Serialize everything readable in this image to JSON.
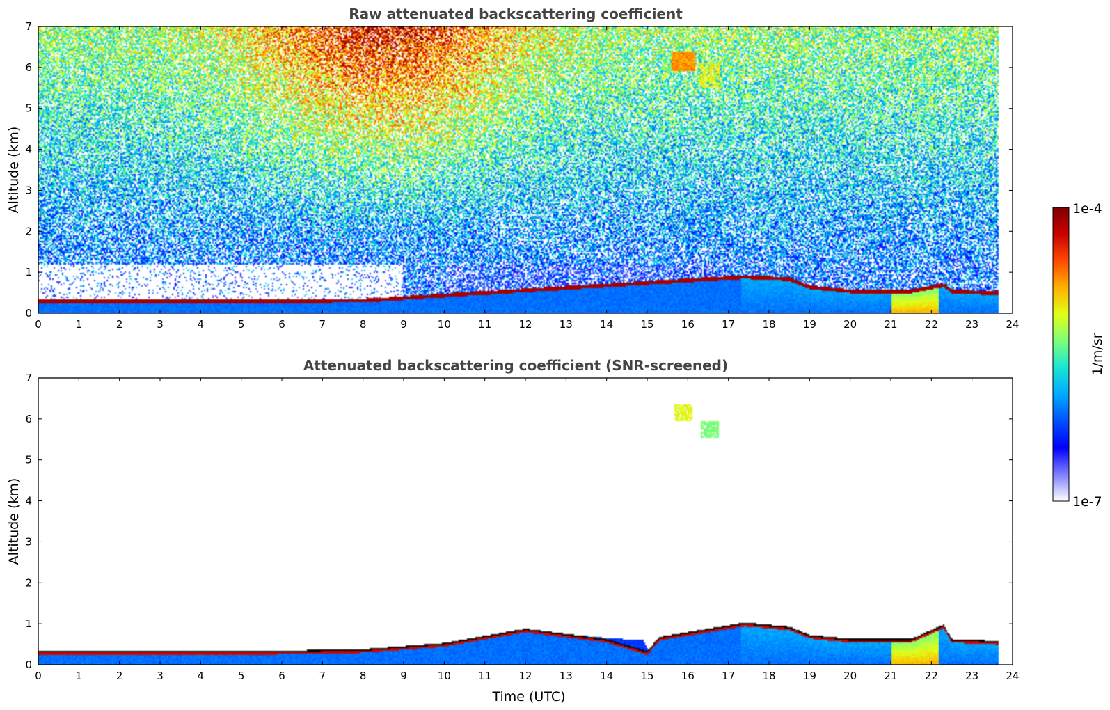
{
  "chart_data": [
    {
      "type": "heatmap",
      "title": "Raw attenuated backscattering coefficient",
      "xlabel": "",
      "ylabel": "Altitude (km)",
      "xlim": [
        0,
        24
      ],
      "ylim": [
        0,
        7
      ],
      "xticks": [
        "0",
        "1",
        "2",
        "3",
        "4",
        "5",
        "6",
        "7",
        "8",
        "9",
        "10",
        "11",
        "12",
        "13",
        "14",
        "15",
        "16",
        "17",
        "18",
        "19",
        "20",
        "21",
        "22",
        "23",
        "24"
      ],
      "yticks": [
        "0",
        "1",
        "2",
        "3",
        "4",
        "5",
        "6",
        "7"
      ],
      "data_end_hour": 23.65,
      "layer_top_km": [
        [
          0,
          0.3
        ],
        [
          2,
          0.3
        ],
        [
          5,
          0.3
        ],
        [
          8,
          0.32
        ],
        [
          10,
          0.45
        ],
        [
          17.4,
          0.9
        ],
        [
          18.5,
          0.85
        ],
        [
          19,
          0.65
        ],
        [
          20,
          0.55
        ],
        [
          21.5,
          0.55
        ],
        [
          22.3,
          0.7
        ],
        [
          22.5,
          0.55
        ],
        [
          23.65,
          0.5
        ]
      ],
      "features": [
        "noisy upper atmosphere 2-7 km, strongest 6-11 UTC",
        "elevated cloud traces near 6 km around 16-17 UTC",
        "aerosol layer near surface"
      ]
    },
    {
      "type": "heatmap",
      "title": "Attenuated backscattering coefficient (SNR-screened)",
      "xlabel": "Time (UTC)",
      "ylabel": "Altitude (km)",
      "xlim": [
        0,
        24
      ],
      "ylim": [
        0,
        7
      ],
      "xticks": [
        "0",
        "1",
        "2",
        "3",
        "4",
        "5",
        "6",
        "7",
        "8",
        "9",
        "10",
        "11",
        "12",
        "13",
        "14",
        "15",
        "16",
        "17",
        "18",
        "19",
        "20",
        "21",
        "22",
        "23",
        "24"
      ],
      "yticks": [
        "0",
        "1",
        "2",
        "3",
        "4",
        "5",
        "6",
        "7"
      ],
      "data_end_hour": 23.65,
      "layer_top_km": [
        [
          0,
          0.3
        ],
        [
          2,
          0.3
        ],
        [
          5,
          0.3
        ],
        [
          8,
          0.35
        ],
        [
          10,
          0.5
        ],
        [
          12,
          0.85
        ],
        [
          14,
          0.6
        ],
        [
          15,
          0.3
        ],
        [
          15.3,
          0.65
        ],
        [
          17.4,
          1.0
        ],
        [
          18.5,
          0.9
        ],
        [
          19,
          0.7
        ],
        [
          20,
          0.6
        ],
        [
          21.5,
          0.6
        ],
        [
          22.3,
          0.95
        ],
        [
          22.5,
          0.6
        ],
        [
          23.65,
          0.55
        ]
      ],
      "clouds": [
        {
          "t": 15.9,
          "km": 6.15,
          "level": 0.62
        },
        {
          "t": 16.55,
          "km": 5.75,
          "level": 0.52
        }
      ]
    }
  ],
  "colorbar": {
    "min_label": "1e-7",
    "max_label": "1e-4",
    "unit_label": "1/m/sr",
    "colors": [
      "#ffffff",
      "#7f7fff",
      "#0000ff",
      "#0050ff",
      "#00aaff",
      "#18e6d6",
      "#7dff7a",
      "#e2ff16",
      "#ffb000",
      "#ff4a00",
      "#c90000",
      "#7f0000"
    ]
  }
}
